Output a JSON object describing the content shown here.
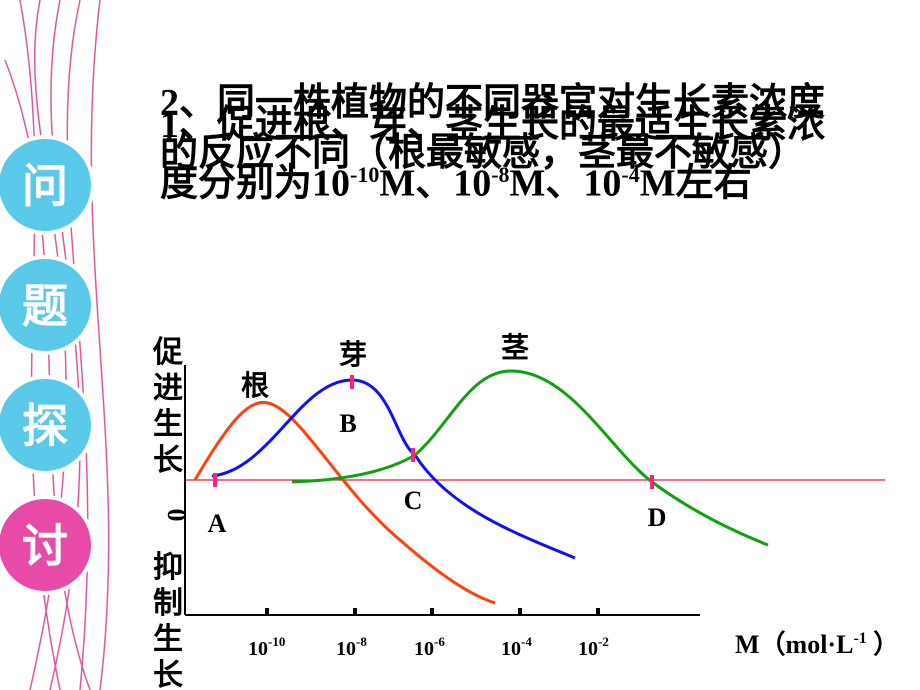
{
  "side_tabs": [
    "问",
    "题",
    "探",
    "讨"
  ],
  "question_1": [
    "1、促进根、芽、茎生长的最适生长素浓度分别为10",
    "-10",
    "M、10",
    "-8",
    "M、10",
    "-4",
    "M左右"
  ],
  "question_2": [
    "2、同一株植物的不同器官对生长素浓度的反应不同（根最敏感，茎最不敏感）"
  ],
  "diagram": {
    "y_label_top": [
      "促",
      "进",
      "生",
      "长"
    ],
    "y_label_zero": "0",
    "y_label_bottom": [
      "抑",
      "制",
      "生",
      "长"
    ],
    "x_label": [
      "M（mol·L",
      "-1",
      " ）"
    ],
    "x_ticks": [
      [
        "10",
        "-10"
      ],
      [
        "10",
        "-8"
      ],
      [
        "10",
        "-6"
      ],
      [
        "10",
        "-4"
      ],
      [
        "10",
        "-2"
      ]
    ],
    "curves": [
      "根",
      "芽",
      "茎"
    ],
    "points": [
      "A",
      "B",
      "C",
      "D"
    ]
  }
}
